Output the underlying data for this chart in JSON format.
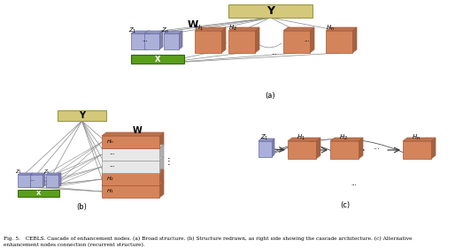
{
  "bg_color": "#ffffff",
  "tan_color": "#d4c87a",
  "green_color": "#5a9e1a",
  "blue_box_color": "#aab0d8",
  "orange_box_color": "#d4845a",
  "orange_light_color": "#e8b090",
  "white_box_color": "#e8e8e8",
  "line_color": "#888888",
  "caption": "Fig. 5.   CEBLS. Cascade of enhancement nodes. (a) Broad structure. (b) Structure redrawn, as right side showing the cascade architecture. (c) Alternative\nenhancement nodes connection (recurrent structure).",
  "label_a": "(a)",
  "label_b": "(b)",
  "label_c": "(c)"
}
